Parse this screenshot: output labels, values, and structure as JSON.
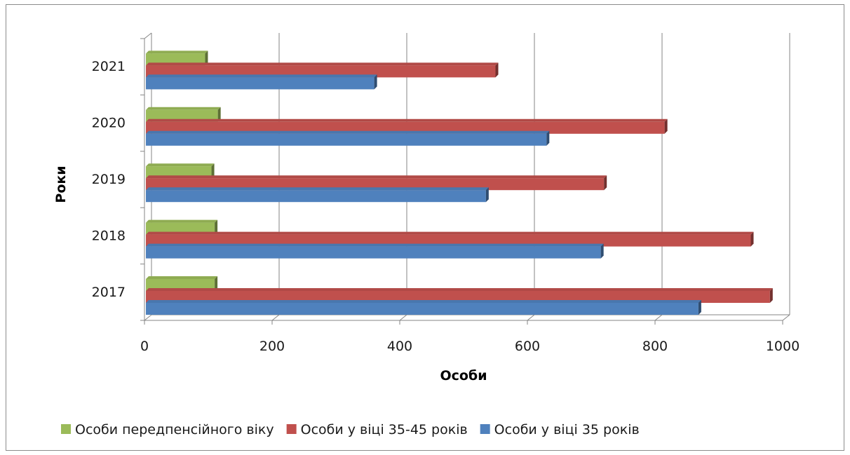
{
  "chart_data": {
    "type": "bar",
    "orientation": "horizontal",
    "title": "",
    "xlabel": "Особи",
    "ylabel": "Роки",
    "categories": [
      "2017",
      "2018",
      "2019",
      "2020",
      "2021"
    ],
    "xlim": [
      0,
      1000
    ],
    "x_ticks": [
      "0",
      "200",
      "400",
      "600",
      "800",
      "1000"
    ],
    "grid": true,
    "legend_position": "bottom",
    "series": [
      {
        "name": "Особи передпенсійного віку",
        "color": "#9bbb59",
        "values": [
          110,
          110,
          105,
          115,
          95
        ]
      },
      {
        "name": "Особи у віці 35-45 років",
        "color": "#c0504d",
        "values": [
          980,
          950,
          720,
          815,
          550
        ]
      },
      {
        "name": "Особи у віці 35 років",
        "color": "#4f81bd",
        "values": [
          868,
          715,
          535,
          630,
          360
        ]
      }
    ]
  }
}
